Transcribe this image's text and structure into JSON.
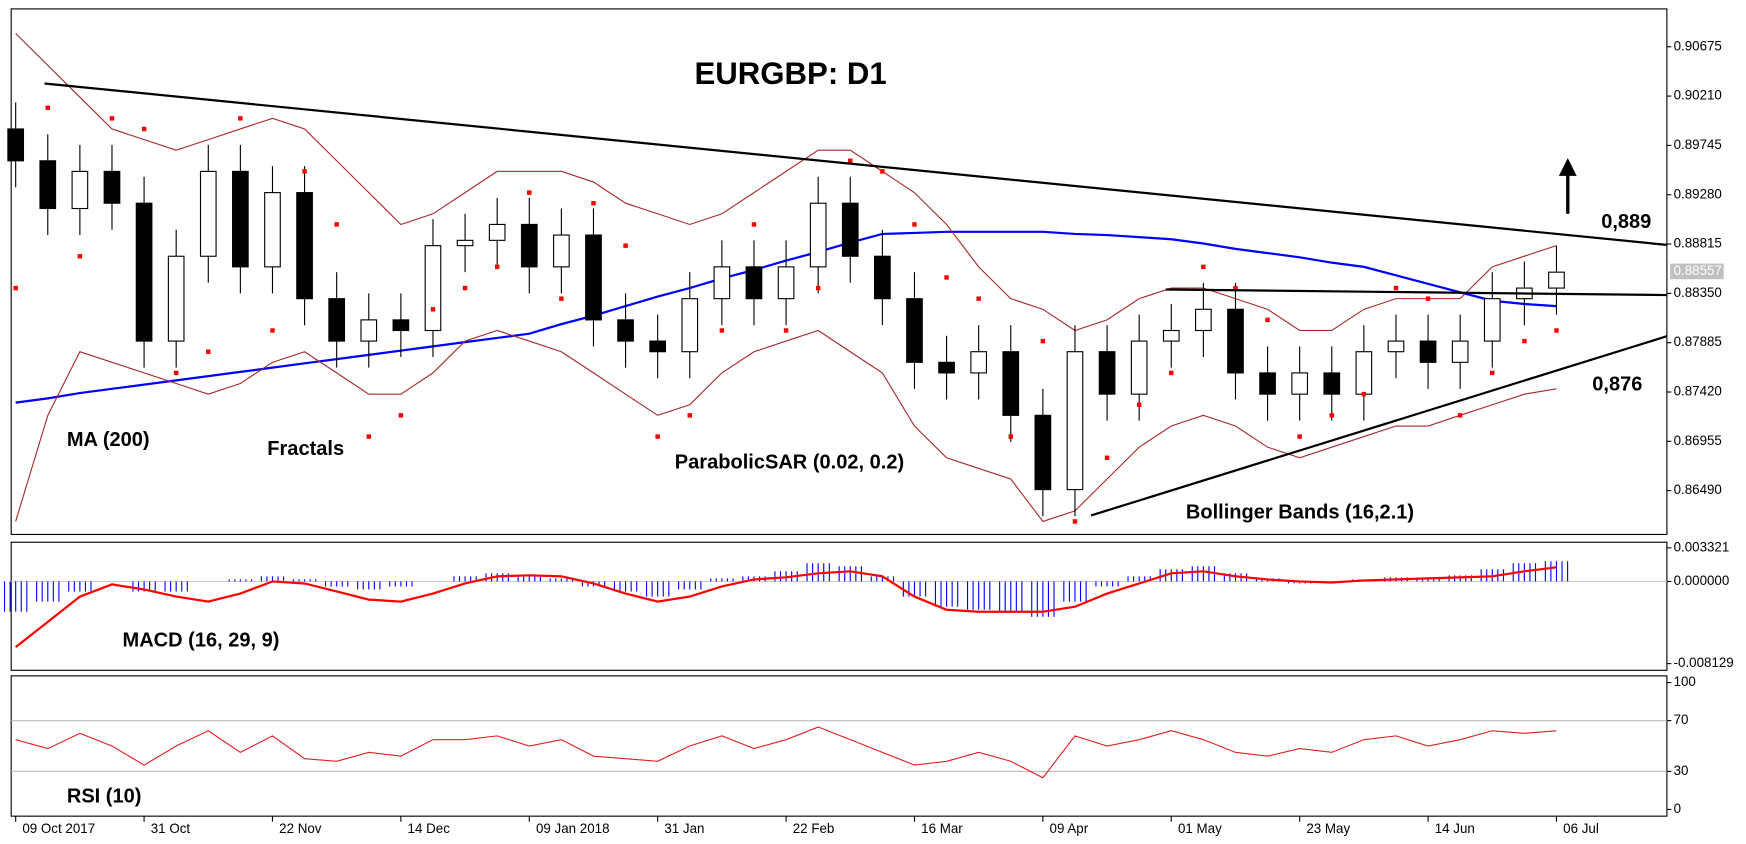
{
  "chart_data": [
    {
      "type": "candlestick",
      "title": "EURGBP: D1",
      "xlim": [
        -0.14,
        51.44
      ],
      "xticks": [
        {
          "value": 0,
          "label": "09 Oct 2017"
        },
        {
          "value": 4,
          "label": "31 Oct"
        },
        {
          "value": 8,
          "label": "22 Nov"
        },
        {
          "value": 12,
          "label": "14 Dec"
        },
        {
          "value": 16,
          "label": "09 Jan 2018"
        },
        {
          "value": 20,
          "label": "31 Jan"
        },
        {
          "value": 24,
          "label": "22 Feb"
        },
        {
          "value": 28,
          "label": "16 Mar"
        },
        {
          "value": 32,
          "label": "09 Apr"
        },
        {
          "value": 36,
          "label": "01 May"
        },
        {
          "value": 40,
          "label": "23 May"
        },
        {
          "value": 44,
          "label": "14 Jun"
        },
        {
          "value": 48,
          "label": "06 Jul"
        }
      ],
      "ylim": [
        0.86077,
        0.91032
      ],
      "yticks": [
        0.90675,
        {
          "value": 0.9021,
          "label": "0.90210"
        },
        0.89745,
        {
          "value": 0.8928,
          "label": "0.89280"
        },
        0.88815,
        {
          "value": 0.8835,
          "label": "0.88350"
        },
        0.87885,
        {
          "value": 0.8742,
          "label": "0.87420"
        },
        0.86955,
        {
          "value": 0.8649,
          "label": "0.86490"
        }
      ],
      "last_price": 0.88557,
      "open": [
        0.899,
        0.896,
        0.8915,
        0.895,
        0.892,
        0.879,
        0.887,
        0.895,
        0.886,
        0.893,
        0.883,
        0.879,
        0.881,
        0.88,
        0.888,
        0.8885,
        0.89,
        0.886,
        0.889,
        0.881,
        0.879,
        0.878,
        0.883,
        0.886,
        0.883,
        0.886,
        0.892,
        0.887,
        0.883,
        0.877,
        0.876,
        0.878,
        0.872,
        0.865,
        0.878,
        0.874,
        0.879,
        0.88,
        0.882,
        0.876,
        0.874,
        0.876,
        0.874,
        0.878,
        0.879,
        0.877,
        0.879,
        0.883,
        0.884
      ],
      "high": [
        0.9015,
        0.8985,
        0.8975,
        0.8975,
        0.8945,
        0.8895,
        0.8975,
        0.8975,
        0.8955,
        0.8955,
        0.8855,
        0.8835,
        0.8835,
        0.8905,
        0.891,
        0.8925,
        0.8925,
        0.8915,
        0.8915,
        0.8835,
        0.8815,
        0.8855,
        0.8885,
        0.8885,
        0.8885,
        0.8945,
        0.8945,
        0.8895,
        0.8855,
        0.8795,
        0.8805,
        0.8805,
        0.8745,
        0.8805,
        0.8805,
        0.8815,
        0.8825,
        0.8845,
        0.8845,
        0.8785,
        0.8785,
        0.8785,
        0.8805,
        0.8815,
        0.8815,
        0.8815,
        0.8855,
        0.8865,
        0.888
      ],
      "low": [
        0.8935,
        0.889,
        0.889,
        0.8895,
        0.8765,
        0.8765,
        0.8845,
        0.8835,
        0.8835,
        0.8805,
        0.8765,
        0.8765,
        0.8775,
        0.8775,
        0.8855,
        0.886,
        0.8835,
        0.8835,
        0.8785,
        0.8765,
        0.8755,
        0.8755,
        0.8805,
        0.8805,
        0.8805,
        0.8835,
        0.8845,
        0.8805,
        0.8745,
        0.8735,
        0.8735,
        0.8695,
        0.8625,
        0.8625,
        0.8715,
        0.8715,
        0.8765,
        0.8775,
        0.8735,
        0.8715,
        0.8715,
        0.8715,
        0.8715,
        0.8755,
        0.8745,
        0.8745,
        0.8765,
        0.8805,
        0.8815
      ],
      "close": [
        0.896,
        0.8915,
        0.895,
        0.892,
        0.879,
        0.887,
        0.895,
        0.886,
        0.893,
        0.883,
        0.879,
        0.881,
        0.88,
        0.888,
        0.8885,
        0.89,
        0.886,
        0.889,
        0.881,
        0.879,
        0.878,
        0.883,
        0.886,
        0.883,
        0.886,
        0.892,
        0.887,
        0.883,
        0.877,
        0.876,
        0.878,
        0.872,
        0.865,
        0.878,
        0.874,
        0.879,
        0.88,
        0.882,
        0.876,
        0.874,
        0.876,
        0.874,
        0.878,
        0.879,
        0.877,
        0.879,
        0.883,
        0.884,
        0.8855
      ],
      "series": [
        {
          "name": "MA (200)",
          "type": "line",
          "color": "#0000ff",
          "values": [
            0.8732,
            0.8736,
            0.8741,
            0.8745,
            0.8749,
            0.8753,
            0.8757,
            0.8761,
            0.8765,
            0.8769,
            0.8773,
            0.8777,
            0.8781,
            0.8785,
            0.8789,
            0.8793,
            0.8797,
            0.8806,
            0.8814,
            0.8823,
            0.8832,
            0.884,
            0.8849,
            0.8857,
            0.8866,
            0.8874,
            0.8883,
            0.8891,
            0.8892,
            0.8893,
            0.8893,
            0.8893,
            0.8893,
            0.8891,
            0.889,
            0.8888,
            0.8886,
            0.8882,
            0.8877,
            0.8873,
            0.8869,
            0.8864,
            0.886,
            0.8852,
            0.8844,
            0.8836,
            0.8828,
            0.8825,
            0.8823
          ]
        },
        {
          "name": "Bollinger Bands (16,2.1)",
          "type": "band",
          "color": "#a52a2a",
          "upper": [
            0.908,
            0.905,
            0.902,
            0.899,
            0.898,
            0.897,
            0.898,
            0.899,
            0.9,
            0.899,
            0.896,
            0.893,
            0.89,
            0.891,
            0.893,
            0.895,
            0.895,
            0.895,
            0.894,
            0.892,
            0.891,
            0.89,
            0.891,
            0.893,
            0.895,
            0.897,
            0.897,
            0.895,
            0.893,
            0.89,
            0.886,
            0.883,
            0.882,
            0.88,
            0.881,
            0.883,
            0.884,
            0.884,
            0.883,
            0.882,
            0.88,
            0.88,
            0.882,
            0.883,
            0.883,
            0.883,
            0.886,
            0.887,
            0.888
          ],
          "lower": [
            0.862,
            0.872,
            0.878,
            0.877,
            0.876,
            0.875,
            0.874,
            0.875,
            0.877,
            0.878,
            0.876,
            0.874,
            0.874,
            0.876,
            0.879,
            0.88,
            0.879,
            0.878,
            0.876,
            0.874,
            0.872,
            0.873,
            0.876,
            0.878,
            0.879,
            0.88,
            0.878,
            0.876,
            0.871,
            0.868,
            0.867,
            0.866,
            0.862,
            0.863,
            0.866,
            0.869,
            0.871,
            0.872,
            0.871,
            0.869,
            0.868,
            0.869,
            0.87,
            0.871,
            0.871,
            0.872,
            0.873,
            0.874,
            0.8745
          ]
        },
        {
          "name": "ParabolicSAR (0.02, 0.2)",
          "type": "dots",
          "color": "#ff0000",
          "values": [
            0.884,
            0.901,
            0.887,
            0.9,
            0.899,
            0.876,
            0.878,
            0.9,
            0.88,
            0.895,
            0.89,
            0.87,
            0.872,
            0.882,
            0.884,
            0.886,
            0.893,
            0.883,
            0.892,
            0.888,
            0.87,
            0.872,
            0.88,
            0.89,
            0.88,
            0.884,
            0.896,
            0.895,
            0.89,
            0.885,
            0.883,
            0.87,
            0.879,
            0.862,
            0.868,
            0.873,
            0.876,
            0.886,
            0.884,
            0.881,
            0.87,
            0.872,
            0.874,
            0.884,
            0.883,
            0.872,
            0.876,
            0.879,
            0.88
          ]
        }
      ],
      "trendlines": [
        {
          "x": [
            0.9,
            51.44
          ],
          "y": [
            0.90329,
            0.88807
          ]
        },
        {
          "x": [
            33.5,
            51.44
          ],
          "y": [
            0.86256,
            0.87946
          ]
        },
        {
          "x": [
            35.83,
            51.44
          ],
          "y": [
            0.88387,
            0.88334
          ]
        }
      ],
      "annotations": [
        "Fractals",
        "0,889",
        "0,876"
      ]
    },
    {
      "type": "macd",
      "name": "MACD (16, 29, 9)",
      "ylim": [
        -0.00879,
        0.003872
      ],
      "yticks": [
        0.003321,
        {
          "value": 0,
          "label": "0.000000"
        },
        -0.008129
      ],
      "histogram": {
        "color": "#0000ff",
        "values": [
          -0.003,
          -0.002,
          -0.001,
          0,
          -0.001,
          -0.001,
          0,
          0.0002,
          0.0005,
          0.0002,
          -0.0005,
          -0.0008,
          -0.0005,
          0,
          0.0005,
          0.0008,
          0.0006,
          0.0003,
          -0.0005,
          -0.001,
          -0.0015,
          -0.0008,
          0.0003,
          0.0005,
          0.001,
          0.0018,
          0.0015,
          0.0005,
          -0.0015,
          -0.0025,
          -0.0028,
          -0.003,
          -0.0035,
          -0.002,
          -0.0005,
          0.0005,
          0.0012,
          0.0015,
          0.0008,
          0.0003,
          -0.0002,
          -0.0001,
          0.0002,
          0.0004,
          0.0004,
          0.0006,
          0.0012,
          0.0018,
          0.002
        ]
      },
      "signal": {
        "color": "#ff0000",
        "values": [
          -0.0065,
          -0.004,
          -0.0015,
          -0.0003,
          -0.0008,
          -0.0015,
          -0.002,
          -0.0012,
          0,
          -0.0002,
          -0.001,
          -0.0018,
          -0.002,
          -0.0012,
          -0.0002,
          0.0005,
          0.0006,
          0.0005,
          -0.0002,
          -0.0012,
          -0.002,
          -0.0015,
          -0.0005,
          0.0002,
          0.0004,
          0.0008,
          0.001,
          0.0005,
          -0.0015,
          -0.0028,
          -0.003,
          -0.003,
          -0.003,
          -0.0025,
          -0.0012,
          -0.0002,
          0.0008,
          0.001,
          0.0005,
          0.0002,
          0,
          -0.0001,
          0.0001,
          0.0002,
          0.0003,
          0.0004,
          0.0005,
          0.001,
          0.0014
        ]
      }
    },
    {
      "type": "line",
      "name": "RSI (10)",
      "color": "#e02020",
      "ylim": [
        -5.3,
        105.3
      ],
      "yticks": [
        100,
        70,
        30,
        0
      ],
      "values": [
        55,
        48,
        60,
        50,
        35,
        50,
        62,
        45,
        58,
        40,
        38,
        45,
        42,
        55,
        55,
        58,
        50,
        55,
        42,
        40,
        38,
        50,
        58,
        48,
        55,
        65,
        55,
        45,
        35,
        38,
        45,
        38,
        25,
        58,
        50,
        55,
        62,
        55,
        45,
        42,
        48,
        45,
        55,
        58,
        50,
        55,
        62,
        60,
        62
      ]
    }
  ]
}
